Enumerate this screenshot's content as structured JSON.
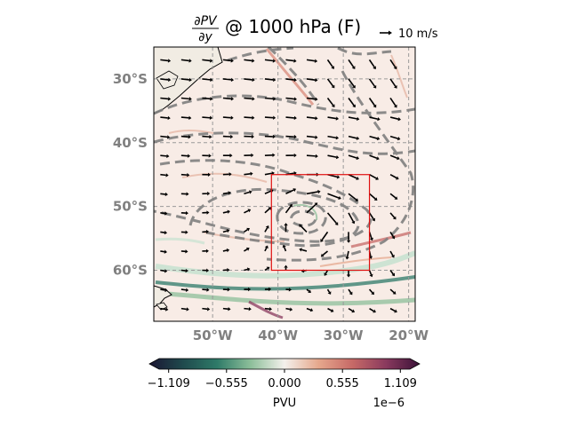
{
  "figure": {
    "title_text": "@ 1000 hPa (F)",
    "title_numerator": "∂PV",
    "title_denominator": "∂y",
    "quiver_key_label": "10 m/s"
  },
  "chart_data": {
    "type": "heatmap",
    "title": "∂PV/∂y @ 1000 hPa (F)",
    "x_ticks": [
      {
        "value": -50,
        "label": "50°W"
      },
      {
        "value": -40,
        "label": "40°W"
      },
      {
        "value": -30,
        "label": "30°W"
      },
      {
        "value": -20,
        "label": "20°W"
      }
    ],
    "y_ticks": [
      {
        "value": -30,
        "label": "30°S"
      },
      {
        "value": -40,
        "label": "40°S"
      },
      {
        "value": -50,
        "label": "50°S"
      },
      {
        "value": -60,
        "label": "60°S"
      }
    ],
    "xlim": [
      -59,
      -19
    ],
    "ylim": [
      -68,
      -25
    ],
    "grid": true,
    "red_box": {
      "lon": [
        -41,
        -26
      ],
      "lat": [
        -60,
        -45
      ]
    },
    "vortex_center": {
      "lon": -34,
      "lat": -52
    },
    "quiver_key_speed": 10,
    "colorbar": {
      "label": "PVU",
      "offset": "1e−6",
      "ticks": [
        "−1.109",
        "−0.555",
        "0.000",
        "0.555",
        "1.109"
      ],
      "tick_values": [
        -1.109,
        -0.555,
        0.0,
        0.555,
        1.109
      ],
      "range": [
        -1.2,
        1.2
      ],
      "colors": [
        "#1b1633",
        "#1f4a4d",
        "#2e7a68",
        "#8dbf9a",
        "#f4f1ec",
        "#e6a88d",
        "#c76a67",
        "#8a3a5e",
        "#3b1238"
      ]
    },
    "colors": {
      "land": "#f1ece3",
      "contour": "#808080",
      "arrow": "#000000",
      "box": "#e01010",
      "tick_text": "#808080"
    }
  }
}
